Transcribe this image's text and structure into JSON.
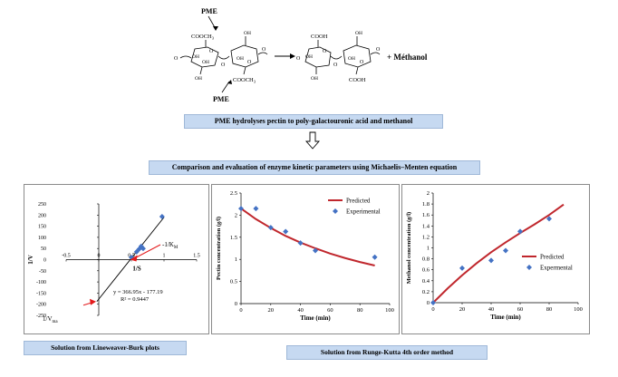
{
  "reaction": {
    "enzyme_top": "PME",
    "enzyme_bottom": "PME",
    "group_ester": "COOCH",
    "group_ester_sub": "3",
    "group_acid": "COOH",
    "hydroxyl": "OH",
    "ring_oxygen": "O",
    "product_methanol": "+ Méthanol"
  },
  "banner_1": "PME hydrolyses pectin to poly-galactouronic acid and methanol",
  "banner_2": "Comparison and evaluation of enzyme kinetic parameters using Michaelis–Menten equation",
  "caption_left": "Solution from Lineweaver-Burk plots",
  "caption_right": "Solution from Runge-Kutta 4th order method",
  "chart_data": [
    {
      "type": "scatter",
      "title": "",
      "xlabel": "1/S",
      "ylabel": "1/V",
      "xlim": [
        -0.5,
        1.5
      ],
      "ylim": [
        -250,
        250
      ],
      "xticks": [
        "-0.5",
        "0",
        "0.5",
        "1",
        "1.5"
      ],
      "yticks": [
        "250",
        "200",
        "150",
        "100",
        "50",
        "0",
        "-50",
        "-100",
        "-150",
        "-200",
        "-250"
      ],
      "points": [
        {
          "x": 0.5,
          "y": 10
        },
        {
          "x": 0.58,
          "y": 35
        },
        {
          "x": 0.62,
          "y": 48
        },
        {
          "x": 0.65,
          "y": 60
        },
        {
          "x": 0.68,
          "y": 50
        },
        {
          "x": 0.97,
          "y": 193
        }
      ],
      "fit_line": {
        "x": [
          -0.03,
          1.0
        ],
        "y": [
          -188,
          190
        ]
      },
      "equation": "y = 366.95x - 177.19",
      "r_squared": "R² = 0.9447",
      "annotations": {
        "km": "-1/K",
        "km_sub": "M",
        "vmax": "1/V",
        "vmax_sub": "ma"
      },
      "arrow_color": "#e31a1c",
      "line_color": "#000000",
      "point_color": "#4472c4"
    },
    {
      "type": "line",
      "title": "",
      "xlabel": "Time (min)",
      "ylabel": "Pectin concentration (g/l)",
      "xlim": [
        0,
        100
      ],
      "ylim": [
        0,
        2.5
      ],
      "xticks": [
        "0",
        "20",
        "40",
        "60",
        "80",
        "100"
      ],
      "yticks": [
        "2.5",
        "2",
        "1.5",
        "1",
        "0.5",
        "0"
      ],
      "series": [
        {
          "name": "Predicted",
          "kind": "line",
          "color": "#c0272d",
          "x": [
            0,
            10,
            20,
            30,
            40,
            50,
            60,
            70,
            80,
            90
          ],
          "y": [
            2.15,
            1.91,
            1.71,
            1.53,
            1.38,
            1.25,
            1.13,
            1.03,
            0.94,
            0.86
          ]
        },
        {
          "name": "Experimental",
          "kind": "points",
          "color": "#4472c4",
          "x": [
            0,
            10,
            20,
            30,
            40,
            50,
            90
          ],
          "y": [
            2.15,
            2.15,
            1.72,
            1.63,
            1.37,
            1.2,
            1.05
          ]
        }
      ],
      "legend": "top-right"
    },
    {
      "type": "line",
      "title": "",
      "xlabel": "Time (min)",
      "ylabel": "Methanol concentration (g/l)",
      "xlim": [
        0,
        100
      ],
      "ylim": [
        0,
        2
      ],
      "xticks": [
        "0",
        "20",
        "40",
        "60",
        "80",
        "100"
      ],
      "yticks": [
        "2",
        "1.8",
        "1.6",
        "1.4",
        "1.2",
        "1",
        "0.8",
        "0.6",
        "0.4",
        "0.2",
        "0"
      ],
      "series": [
        {
          "name": "Predicted",
          "kind": "line",
          "color": "#c0272d",
          "x": [
            0,
            10,
            20,
            30,
            40,
            50,
            60,
            70,
            80,
            90
          ],
          "y": [
            0,
            0.26,
            0.5,
            0.72,
            0.92,
            1.1,
            1.27,
            1.43,
            1.6,
            1.79
          ]
        },
        {
          "name": "Expermental",
          "kind": "points",
          "color": "#4472c4",
          "x": [
            0,
            20,
            40,
            50,
            60,
            80
          ],
          "y": [
            0,
            0.63,
            0.77,
            0.95,
            1.3,
            1.53
          ]
        }
      ],
      "legend": "center-right"
    }
  ]
}
